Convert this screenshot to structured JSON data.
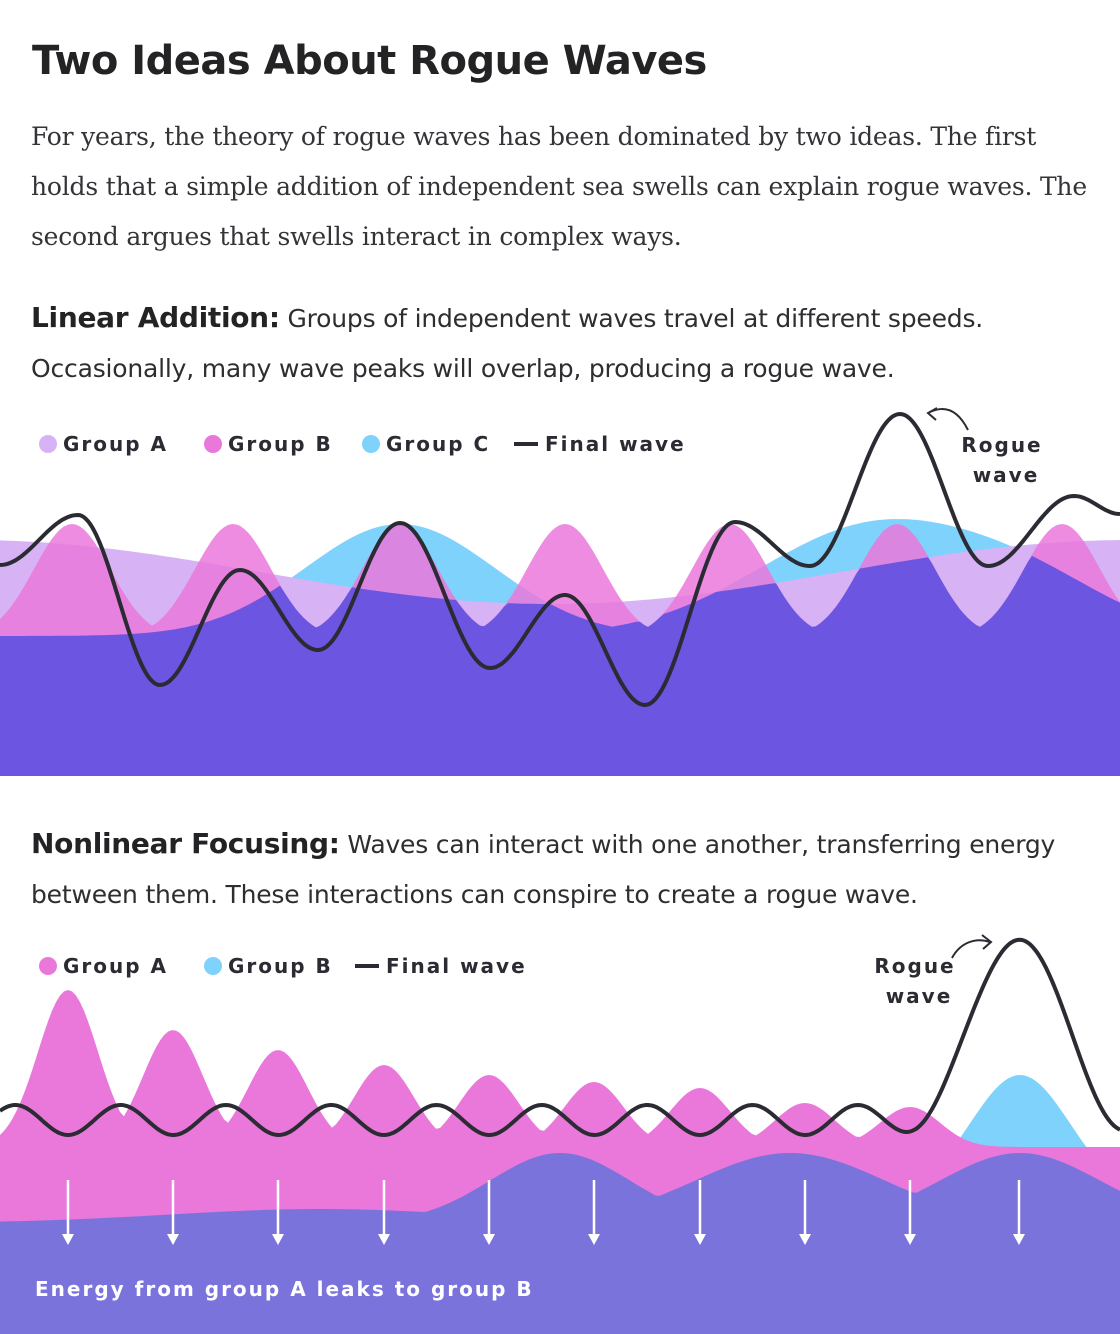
{
  "title": "Two Ideas About Rogue Waves",
  "intro": "For years, the theory of rogue waves has been dominated by two ideas. The first holds that a simple addition of independent sea swells can explain rogue waves. The second argues that swells interact in complex ways.",
  "sections": [
    {
      "heading": "Linear Addition:",
      "text": "Groups of independent waves travel at different speeds. Occasionally, many wave peaks will overlap, producing a rogue wave.",
      "legend": [
        {
          "label": "Group A",
          "color": "#d7b2f5",
          "marker": "dot"
        },
        {
          "label": "Group B",
          "color": "#ea78da",
          "marker": "dot"
        },
        {
          "label": "Group C",
          "color": "#7ed2fb",
          "marker": "dot"
        },
        {
          "label": "Final wave",
          "color": "#2b2b33",
          "marker": "line"
        }
      ],
      "annotation": [
        "Rogue",
        "wave"
      ]
    },
    {
      "heading": "Nonlinear Focusing:",
      "text": "Waves can interact with one another, transferring energy between them. These interactions can conspire to create a rogue wave.",
      "legend": [
        {
          "label": "Group A",
          "color": "#ea78da",
          "marker": "dot"
        },
        {
          "label": "Group B",
          "color": "#7ed2fb",
          "marker": "dot"
        },
        {
          "label": "Final wave",
          "color": "#2b2b33",
          "marker": "line"
        }
      ],
      "annotation": [
        "Rogue",
        "wave"
      ],
      "footer": "Energy from group A leaks to group B"
    }
  ],
  "colors": {
    "base_purple": "#6c55e0",
    "lower_purple": "#7b73dc",
    "final_wave": "#2b2b33",
    "arrow": "#ffffff"
  }
}
